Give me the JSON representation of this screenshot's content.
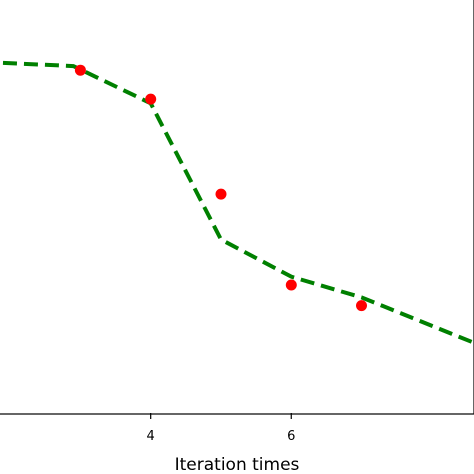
{
  "chart_data": {
    "type": "line",
    "title": "",
    "xlabel": "Iteration times",
    "ylabel": "",
    "xlim": [
      1.6,
      8.6
    ],
    "ylim": [
      0.0,
      1.0
    ],
    "x_ticks": [
      4,
      6
    ],
    "grid": false,
    "legend": "none",
    "series": [
      {
        "style": "dashed-line",
        "color": "#008000",
        "x": [
          1.6,
          2.9,
          4.0,
          5.0,
          6.0,
          7.0,
          8.6
        ],
        "y": [
          0.85,
          0.84,
          0.75,
          0.42,
          0.33,
          0.28,
          0.17
        ]
      },
      {
        "style": "scatter",
        "color": "#ff0000",
        "x": [
          3.0,
          4.0,
          5.0,
          6.0,
          7.0
        ],
        "y": [
          0.83,
          0.76,
          0.53,
          0.31,
          0.26
        ]
      }
    ]
  }
}
